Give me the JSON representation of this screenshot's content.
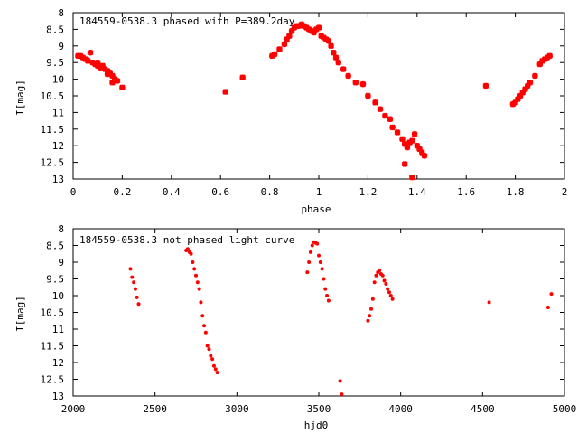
{
  "chart_data": [
    {
      "type": "scatter",
      "title": "184559-0538.3 phased with P=389.2day",
      "xlabel": "phase",
      "ylabel": "I[mag]",
      "xlim": [
        0,
        2
      ],
      "ylim": [
        8,
        13
      ],
      "y_inverted": true,
      "grid": false,
      "x_ticks": [
        "0",
        "0.2",
        "0.4",
        "0.6",
        "0.8",
        "1",
        "1.2",
        "1.4",
        "1.6",
        "1.8",
        "2"
      ],
      "y_ticks": [
        "8",
        "8.5",
        "9",
        "9.5",
        "10",
        "10.5",
        "11",
        "11.5",
        "12",
        "12.5",
        "13"
      ],
      "marker_color": "#ff0000",
      "marker": "star",
      "series": [
        {
          "x": [
            0.02,
            0.03,
            0.04,
            0.05,
            0.06,
            0.07,
            0.08,
            0.09,
            0.1,
            0.11,
            0.12,
            0.13,
            0.14,
            0.15,
            0.16,
            0.17,
            0.18,
            0.1,
            0.12,
            0.14,
            0.16,
            0.2,
            0.62,
            0.69,
            0.81,
            0.82,
            0.84,
            0.86,
            0.87,
            0.88,
            0.89,
            0.9,
            0.91,
            0.92,
            0.93,
            0.94,
            0.95,
            0.96,
            0.97,
            0.98,
            0.99,
            1.0,
            1.01,
            1.02,
            1.03,
            1.04,
            1.05,
            1.06,
            1.07,
            1.08,
            1.1,
            1.12,
            1.15,
            1.18,
            1.2,
            1.23,
            1.25,
            1.27,
            1.29,
            1.3,
            1.32,
            1.34,
            1.35,
            1.36,
            1.37,
            1.38,
            1.39,
            1.4,
            1.41,
            1.42,
            1.43,
            1.35,
            1.38,
            1.68,
            1.79,
            1.8,
            1.81,
            1.82,
            1.83,
            1.84,
            1.85,
            1.86,
            1.88,
            1.9,
            1.91,
            1.92,
            1.93,
            1.94
          ],
          "y": [
            9.3,
            9.3,
            9.35,
            9.4,
            9.45,
            9.2,
            9.5,
            9.55,
            9.6,
            9.65,
            9.6,
            9.7,
            9.75,
            9.8,
            9.9,
            10.0,
            10.05,
            9.5,
            9.65,
            9.85,
            10.1,
            10.25,
            10.38,
            9.95,
            9.3,
            9.25,
            9.1,
            8.95,
            8.8,
            8.7,
            8.55,
            8.45,
            8.4,
            8.4,
            8.35,
            8.4,
            8.45,
            8.5,
            8.55,
            8.6,
            8.5,
            8.45,
            8.7,
            8.75,
            8.8,
            8.85,
            9.0,
            9.2,
            9.35,
            9.5,
            9.7,
            9.9,
            10.1,
            10.15,
            10.5,
            10.7,
            10.9,
            11.1,
            11.2,
            11.45,
            11.6,
            11.8,
            11.95,
            12.05,
            11.9,
            11.85,
            11.65,
            12.0,
            12.1,
            12.2,
            12.3,
            12.55,
            12.95,
            10.2,
            10.75,
            10.7,
            10.6,
            10.5,
            10.4,
            10.3,
            10.2,
            10.1,
            9.9,
            9.55,
            9.45,
            9.4,
            9.35,
            9.3
          ]
        }
      ]
    },
    {
      "type": "scatter",
      "title": "184559-0538.3 not phased light curve",
      "xlabel": "hjd0",
      "ylabel": "I[mag]",
      "xlim": [
        2000,
        5000
      ],
      "ylim": [
        8,
        13
      ],
      "y_inverted": true,
      "grid": false,
      "x_ticks": [
        "2000",
        "2500",
        "3000",
        "3500",
        "4000",
        "4500",
        "5000"
      ],
      "y_ticks": [
        "8",
        "8.5",
        "9",
        "9.5",
        "10",
        "10.5",
        "11",
        "11.5",
        "12",
        "12.5",
        "13"
      ],
      "marker_color": "#ff0000",
      "marker": "dot",
      "series": [
        {
          "x": [
            2350,
            2360,
            2370,
            2380,
            2390,
            2400,
            2690,
            2700,
            2710,
            2720,
            2730,
            2740,
            2750,
            2760,
            2770,
            2780,
            2790,
            2800,
            2810,
            2820,
            2830,
            2840,
            2850,
            2860,
            2870,
            2880,
            3430,
            3440,
            3450,
            3460,
            3470,
            3480,
            3490,
            3500,
            3510,
            3520,
            3530,
            3540,
            3550,
            3560,
            3630,
            3640,
            3800,
            3810,
            3820,
            3830,
            3840,
            3850,
            3860,
            3870,
            3880,
            3890,
            3900,
            3910,
            3920,
            3930,
            3940,
            3950,
            4540,
            4900,
            4920
          ],
          "y": [
            9.2,
            9.45,
            9.6,
            9.8,
            10.05,
            10.25,
            8.65,
            8.6,
            8.7,
            8.75,
            9.0,
            9.2,
            9.4,
            9.6,
            9.8,
            10.2,
            10.6,
            10.9,
            11.1,
            11.5,
            11.6,
            11.8,
            11.9,
            12.1,
            12.2,
            12.3,
            9.3,
            9.0,
            8.7,
            8.5,
            8.4,
            8.42,
            8.45,
            8.8,
            9.0,
            9.2,
            9.5,
            9.8,
            10.0,
            10.15,
            12.55,
            12.95,
            10.75,
            10.6,
            10.4,
            10.1,
            9.6,
            9.4,
            9.3,
            9.25,
            9.35,
            9.4,
            9.55,
            9.65,
            9.8,
            9.9,
            10.0,
            10.1,
            10.2,
            10.35,
            9.95
          ]
        }
      ]
    }
  ]
}
